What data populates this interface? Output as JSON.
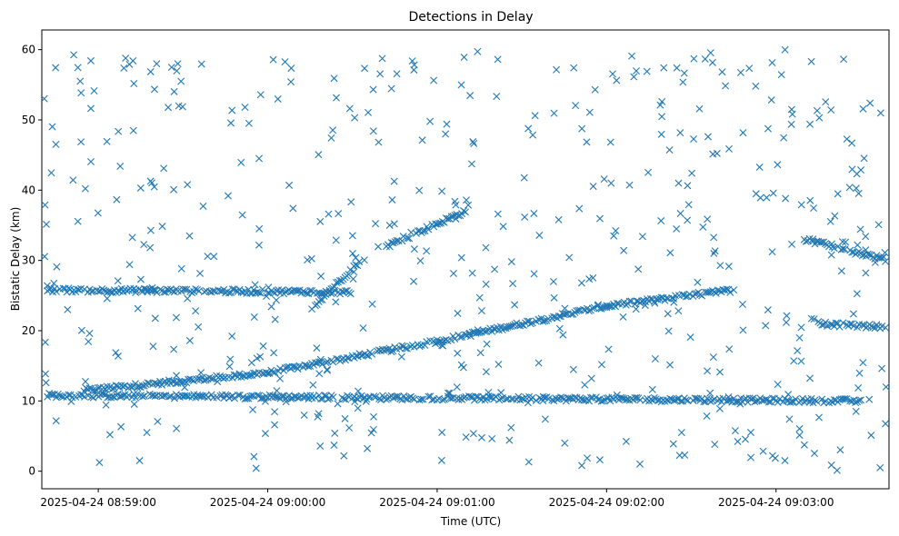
{
  "chart_data": {
    "type": "scatter",
    "title": "Detections in Delay",
    "xlabel": "Time (UTC)",
    "ylabel": "Bistatic Delay (km)",
    "marker": "x",
    "color": "#1f77b4",
    "grid": false,
    "legend": "none",
    "x_start": "2025-04-24 08:58:40",
    "x_end": "2025-04-24 09:03:40",
    "ylim": [
      0,
      60
    ],
    "x_ticks": [
      {
        "time": "2025-04-24 08:59:00",
        "label": "2025-04-24 08:59:00"
      },
      {
        "time": "2025-04-24 09:00:00",
        "label": "2025-04-24 09:00:00"
      },
      {
        "time": "2025-04-24 09:01:00",
        "label": "2025-04-24 09:01:00"
      },
      {
        "time": "2025-04-24 09:02:00",
        "label": "2025-04-24 09:02:00"
      },
      {
        "time": "2025-04-24 09:03:00",
        "label": "2025-04-24 09:03:00"
      }
    ],
    "y_ticks": [
      0,
      10,
      20,
      30,
      40,
      50,
      60
    ],
    "tracks": [
      {
        "desc": "main target track",
        "points": [
          [
            "2025-04-24 08:58:55",
            11.5
          ],
          [
            "2025-04-24 09:00:00",
            14.0
          ],
          [
            "2025-04-24 09:01:00",
            18.5
          ],
          [
            "2025-04-24 09:02:00",
            23.5
          ],
          [
            "2025-04-24 09:02:45",
            25.8
          ]
        ]
      },
      {
        "desc": "rising track",
        "points": [
          [
            "2025-04-24 09:00:15",
            23.0
          ],
          [
            "2025-04-24 09:00:33",
            30.0
          ]
        ]
      },
      {
        "desc": "rising track 2",
        "points": [
          [
            "2025-04-24 09:00:42",
            32.0
          ],
          [
            "2025-04-24 09:01:10",
            37.0
          ]
        ]
      },
      {
        "desc": "band",
        "points": [
          [
            "2025-04-24 08:58:42",
            10.8
          ],
          [
            "2025-04-24 09:03:30",
            10.0
          ]
        ]
      },
      {
        "desc": "band",
        "points": [
          [
            "2025-04-24 08:58:42",
            25.8
          ],
          [
            "2025-04-24 09:00:30",
            25.5
          ]
        ]
      },
      {
        "desc": "band",
        "points": [
          [
            "2025-04-24 09:03:10",
            33.0
          ],
          [
            "2025-04-24 09:03:40",
            30.0
          ]
        ]
      },
      {
        "desc": "band",
        "points": [
          [
            "2025-04-24 09:03:15",
            21.0
          ],
          [
            "2025-04-24 09:03:40",
            20.5
          ]
        ]
      }
    ],
    "clutter": {
      "approx_count": 520,
      "x_range": [
        "2025-04-24 08:58:40",
        "2025-04-24 09:03:40"
      ],
      "y_range": [
        0,
        60
      ]
    }
  }
}
